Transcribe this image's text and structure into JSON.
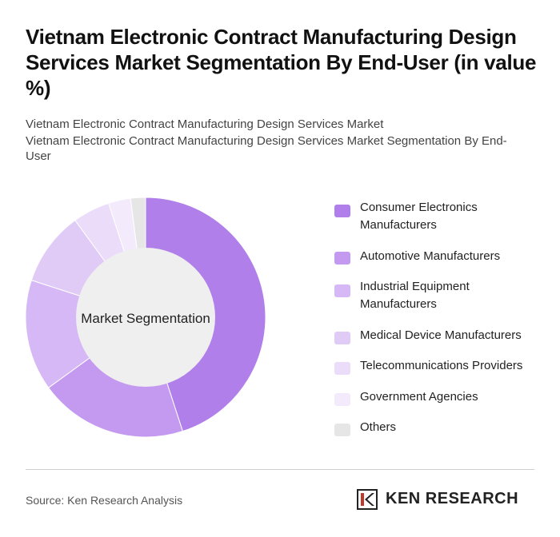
{
  "title": "Vietnam Electronic Contract Manufacturing Design Services Market Segmentation By End-User (in value %)",
  "subtitle_line1": "Vietnam Electronic Contract Manufacturing Design Services Market",
  "subtitle_line2": "Vietnam Electronic Contract Manufacturing Design Services Market Segmentation By End-User",
  "source": "Source: Ken Research Analysis",
  "logo": {
    "text": "KEN RESEARCH",
    "icon": "ken-research-logo-icon"
  },
  "chart_data": {
    "type": "pie",
    "center_label": "Market Segmentation",
    "categories": [
      "Consumer Electronics Manufacturers",
      "Automotive Manufacturers",
      "Industrial Equipment Manufacturers",
      "Medical Device Manufacturers",
      "Telecommunications Providers",
      "Government Agencies",
      "Others"
    ],
    "values": [
      45,
      20,
      15,
      10,
      5,
      3,
      2
    ],
    "colors": [
      "#b07fea",
      "#c39af0",
      "#d5b8f5",
      "#e0cbf7",
      "#ebdcfa",
      "#f3ebfc",
      "#e6e6e6"
    ],
    "legend_position": "right"
  }
}
